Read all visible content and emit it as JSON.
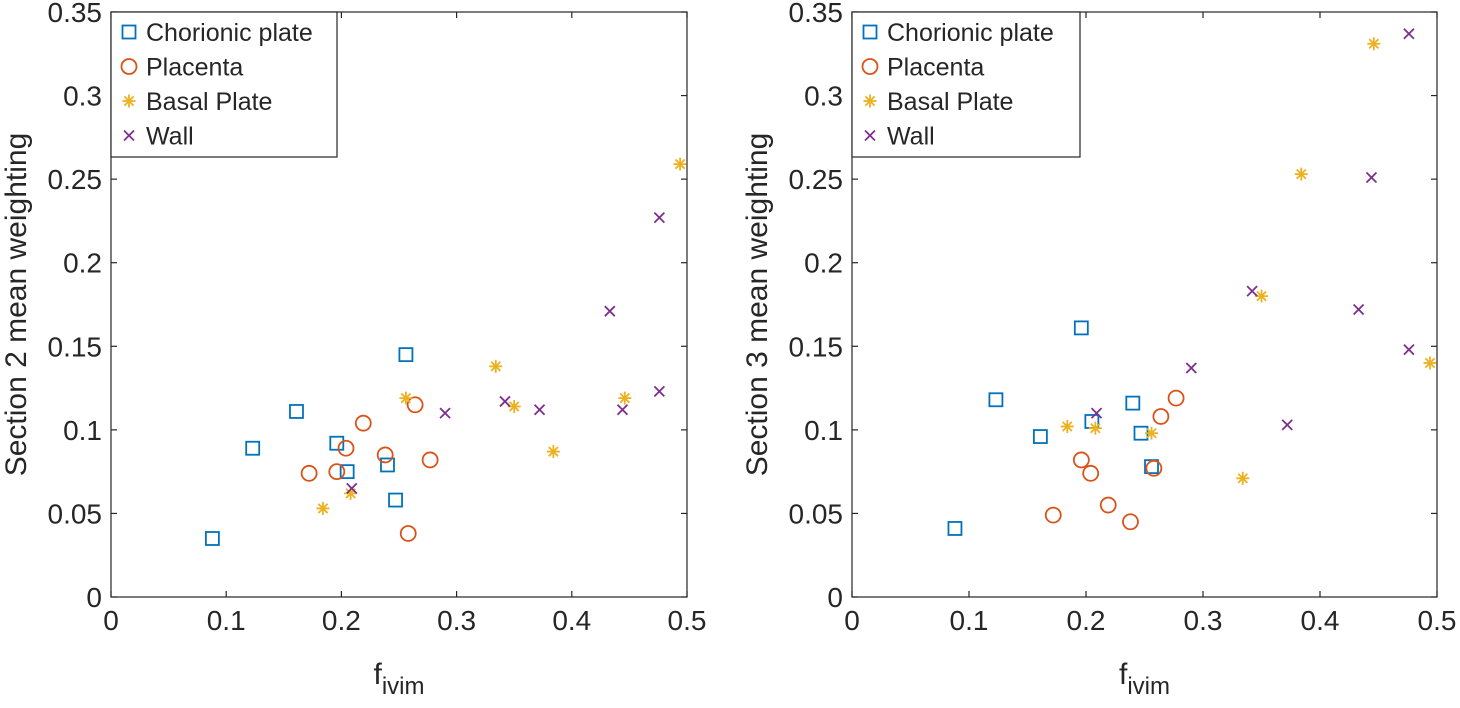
{
  "chart_data": [
    {
      "type": "scatter",
      "title": "",
      "xlabel": "f",
      "xlabel_sub": "ivim",
      "ylabel": "Section 2 mean weighting",
      "xlim": [
        0,
        0.5
      ],
      "ylim": [
        0,
        0.35
      ],
      "xticks": [
        "0",
        "0.1",
        "0.2",
        "0.3",
        "0.4",
        "0.5"
      ],
      "yticks": [
        "0",
        "0.05",
        "0.1",
        "0.15",
        "0.2",
        "0.25",
        "0.3",
        "0.35"
      ],
      "legend_position": "top-left",
      "series": [
        {
          "name": "Chorionic plate",
          "marker": "square",
          "color": "#0072BD",
          "points": [
            [
              0.088,
              0.035
            ],
            [
              0.123,
              0.089
            ],
            [
              0.161,
              0.111
            ],
            [
              0.196,
              0.092
            ],
            [
              0.205,
              0.075
            ],
            [
              0.24,
              0.079
            ],
            [
              0.247,
              0.058
            ],
            [
              0.256,
              0.145
            ]
          ]
        },
        {
          "name": "Placenta",
          "marker": "circle",
          "color": "#D95319",
          "points": [
            [
              0.172,
              0.074
            ],
            [
              0.196,
              0.075
            ],
            [
              0.204,
              0.089
            ],
            [
              0.219,
              0.104
            ],
            [
              0.238,
              0.085
            ],
            [
              0.258,
              0.038
            ],
            [
              0.264,
              0.115
            ],
            [
              0.277,
              0.082
            ]
          ]
        },
        {
          "name": "Basal Plate",
          "marker": "asterisk",
          "color": "#EDB120",
          "points": [
            [
              0.184,
              0.053
            ],
            [
              0.208,
              0.062
            ],
            [
              0.256,
              0.119
            ],
            [
              0.334,
              0.138
            ],
            [
              0.35,
              0.114
            ],
            [
              0.384,
              0.087
            ],
            [
              0.446,
              0.119
            ],
            [
              0.494,
              0.259
            ]
          ]
        },
        {
          "name": "Wall",
          "marker": "x",
          "color": "#7E2F8E",
          "points": [
            [
              0.209,
              0.065
            ],
            [
              0.29,
              0.11
            ],
            [
              0.342,
              0.117
            ],
            [
              0.372,
              0.112
            ],
            [
              0.433,
              0.171
            ],
            [
              0.444,
              0.112
            ],
            [
              0.476,
              0.227
            ],
            [
              0.476,
              0.123
            ]
          ]
        }
      ]
    },
    {
      "type": "scatter",
      "title": "",
      "xlabel": "f",
      "xlabel_sub": "ivim",
      "ylabel": "Section 3 mean weighting",
      "xlim": [
        0,
        0.5
      ],
      "ylim": [
        0,
        0.35
      ],
      "xticks": [
        "0",
        "0.1",
        "0.2",
        "0.3",
        "0.4",
        "0.5"
      ],
      "yticks": [
        "0",
        "0.05",
        "0.1",
        "0.15",
        "0.2",
        "0.25",
        "0.3",
        "0.35"
      ],
      "legend_position": "top-left",
      "series": [
        {
          "name": "Chorionic plate",
          "marker": "square",
          "color": "#0072BD",
          "points": [
            [
              0.088,
              0.041
            ],
            [
              0.123,
              0.118
            ],
            [
              0.161,
              0.096
            ],
            [
              0.196,
              0.161
            ],
            [
              0.205,
              0.105
            ],
            [
              0.24,
              0.116
            ],
            [
              0.247,
              0.098
            ],
            [
              0.256,
              0.078
            ]
          ]
        },
        {
          "name": "Placenta",
          "marker": "circle",
          "color": "#D95319",
          "points": [
            [
              0.172,
              0.049
            ],
            [
              0.196,
              0.082
            ],
            [
              0.204,
              0.074
            ],
            [
              0.219,
              0.055
            ],
            [
              0.238,
              0.045
            ],
            [
              0.258,
              0.077
            ],
            [
              0.264,
              0.108
            ],
            [
              0.277,
              0.119
            ]
          ]
        },
        {
          "name": "Basal Plate",
          "marker": "asterisk",
          "color": "#EDB120",
          "points": [
            [
              0.184,
              0.102
            ],
            [
              0.208,
              0.101
            ],
            [
              0.256,
              0.098
            ],
            [
              0.334,
              0.071
            ],
            [
              0.35,
              0.18
            ],
            [
              0.384,
              0.253
            ],
            [
              0.446,
              0.331
            ],
            [
              0.494,
              0.14
            ]
          ]
        },
        {
          "name": "Wall",
          "marker": "x",
          "color": "#7E2F8E",
          "points": [
            [
              0.209,
              0.11
            ],
            [
              0.29,
              0.137
            ],
            [
              0.342,
              0.183
            ],
            [
              0.372,
              0.103
            ],
            [
              0.433,
              0.172
            ],
            [
              0.444,
              0.251
            ],
            [
              0.476,
              0.337
            ],
            [
              0.476,
              0.148
            ]
          ]
        }
      ]
    }
  ]
}
